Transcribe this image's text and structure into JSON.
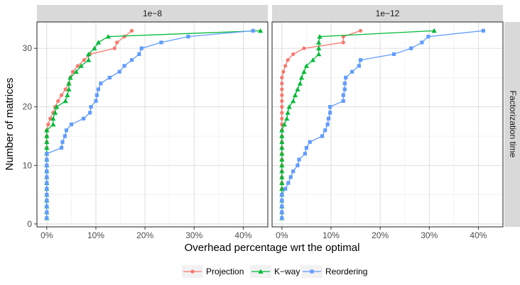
{
  "figure": {
    "xlabel": "Overhead percentage wrt the optimal",
    "ylabel": "Number of matrices",
    "strip_right": "Factorization time",
    "grid": true,
    "legend_position": "bottom",
    "colors": {
      "panel_bg": "#ffffff",
      "grid": "#d9d9d9",
      "strip_bg": "#d9d9d9",
      "border": "#333333"
    }
  },
  "chart_data": [
    {
      "type": "line",
      "facet": "1e−8",
      "xlim": [
        -2,
        45
      ],
      "ylim": [
        -0.5,
        34.5
      ],
      "x_ticks": [
        0,
        10,
        20,
        30,
        40
      ],
      "x_tick_labels": [
        "0%",
        "10%",
        "20%",
        "30%",
        "40%"
      ],
      "y_ticks": [
        0,
        10,
        20,
        30
      ],
      "y_tick_labels": [
        "0",
        "10",
        "20",
        "30"
      ],
      "series": [
        {
          "name": "Projection",
          "color": "#F8766D",
          "marker": "circle",
          "points": [
            [
              0,
              1
            ],
            [
              0,
              2
            ],
            [
              0,
              3
            ],
            [
              0,
              4
            ],
            [
              0,
              5
            ],
            [
              0,
              6
            ],
            [
              0,
              7
            ],
            [
              0,
              8
            ],
            [
              0,
              9
            ],
            [
              0,
              10
            ],
            [
              0,
              11
            ],
            [
              0,
              12
            ],
            [
              0,
              13
            ],
            [
              0,
              14
            ],
            [
              0,
              15
            ],
            [
              0,
              16
            ],
            [
              0.3,
              17
            ],
            [
              0.7,
              18
            ],
            [
              1.3,
              19
            ],
            [
              1.7,
              20
            ],
            [
              2.3,
              21
            ],
            [
              3,
              22
            ],
            [
              3.8,
              23
            ],
            [
              4.5,
              24
            ],
            [
              4.8,
              25
            ],
            [
              5.3,
              26
            ],
            [
              6.3,
              27
            ],
            [
              7.6,
              28
            ],
            [
              8.8,
              29
            ],
            [
              13.8,
              30
            ],
            [
              14.3,
              31
            ],
            [
              15.8,
              32
            ],
            [
              17.3,
              33
            ]
          ]
        },
        {
          "name": "K−way",
          "color": "#00BA38",
          "marker": "triangle",
          "points": [
            [
              0,
              1
            ],
            [
              0,
              2
            ],
            [
              0,
              3
            ],
            [
              0,
              4
            ],
            [
              0,
              5
            ],
            [
              0,
              6
            ],
            [
              0,
              7
            ],
            [
              0,
              8
            ],
            [
              0,
              9
            ],
            [
              0,
              10
            ],
            [
              0,
              11
            ],
            [
              0,
              12
            ],
            [
              0,
              13
            ],
            [
              0,
              14
            ],
            [
              0,
              15
            ],
            [
              0,
              16
            ],
            [
              1.3,
              17
            ],
            [
              1.3,
              18
            ],
            [
              1.7,
              19
            ],
            [
              2,
              20
            ],
            [
              3.8,
              21
            ],
            [
              4.2,
              22
            ],
            [
              4.5,
              23
            ],
            [
              4.5,
              24
            ],
            [
              4.8,
              25
            ],
            [
              6,
              26
            ],
            [
              7,
              27
            ],
            [
              8.5,
              28
            ],
            [
              8.5,
              29
            ],
            [
              9.7,
              30
            ],
            [
              10.5,
              31
            ],
            [
              12.5,
              32
            ],
            [
              43.5,
              33
            ]
          ]
        },
        {
          "name": "Reordering",
          "color": "#619CFF",
          "marker": "square",
          "points": [
            [
              0,
              1
            ],
            [
              0,
              2
            ],
            [
              0,
              3
            ],
            [
              0,
              4
            ],
            [
              0,
              5
            ],
            [
              0,
              6
            ],
            [
              0,
              7
            ],
            [
              0,
              8
            ],
            [
              0,
              9
            ],
            [
              0,
              10
            ],
            [
              0,
              11
            ],
            [
              0,
              12
            ],
            [
              3,
              13
            ],
            [
              3.2,
              14
            ],
            [
              3.7,
              15
            ],
            [
              4,
              16
            ],
            [
              5,
              17
            ],
            [
              7.5,
              18
            ],
            [
              8.8,
              19
            ],
            [
              9,
              20
            ],
            [
              10,
              21
            ],
            [
              10.2,
              22
            ],
            [
              10.5,
              23
            ],
            [
              11,
              24
            ],
            [
              12.8,
              25
            ],
            [
              14.8,
              26
            ],
            [
              15.8,
              27
            ],
            [
              17.3,
              28
            ],
            [
              18.8,
              29
            ],
            [
              19.3,
              30
            ],
            [
              23.3,
              31
            ],
            [
              28.8,
              32
            ],
            [
              42,
              33
            ]
          ]
        }
      ]
    },
    {
      "type": "line",
      "facet": "1e−12",
      "xlim": [
        -2,
        45
      ],
      "ylim": [
        -0.5,
        34.5
      ],
      "x_ticks": [
        0,
        10,
        20,
        30,
        40
      ],
      "x_tick_labels": [
        "0%",
        "10%",
        "20%",
        "30%",
        "40%"
      ],
      "y_ticks": [
        0,
        10,
        20,
        30
      ],
      "y_tick_labels": [
        "0",
        "10",
        "20",
        "30"
      ],
      "series": [
        {
          "name": "Projection",
          "color": "#F8766D",
          "marker": "circle",
          "points": [
            [
              0,
              1
            ],
            [
              0,
              2
            ],
            [
              0,
              3
            ],
            [
              0,
              4
            ],
            [
              0,
              5
            ],
            [
              0,
              6
            ],
            [
              0,
              7
            ],
            [
              0,
              8
            ],
            [
              0,
              9
            ],
            [
              0,
              10
            ],
            [
              0,
              11
            ],
            [
              0,
              12
            ],
            [
              0,
              13
            ],
            [
              0,
              14
            ],
            [
              0,
              15
            ],
            [
              0,
              16
            ],
            [
              0,
              17
            ],
            [
              0,
              18
            ],
            [
              0,
              19
            ],
            [
              0,
              20
            ],
            [
              0,
              21
            ],
            [
              0,
              22
            ],
            [
              0,
              23
            ],
            [
              0,
              24
            ],
            [
              0,
              25
            ],
            [
              0.3,
              26
            ],
            [
              0.7,
              27
            ],
            [
              1.2,
              28
            ],
            [
              2.3,
              29
            ],
            [
              4.5,
              30
            ],
            [
              12.5,
              31
            ],
            [
              12.5,
              32
            ],
            [
              16,
              33
            ]
          ]
        },
        {
          "name": "K−way",
          "color": "#00BA38",
          "marker": "triangle",
          "points": [
            [
              0,
              1
            ],
            [
              0,
              2
            ],
            [
              0,
              3
            ],
            [
              0,
              4
            ],
            [
              0,
              5
            ],
            [
              0,
              6
            ],
            [
              0,
              7
            ],
            [
              0,
              8
            ],
            [
              0,
              9
            ],
            [
              0,
              10
            ],
            [
              0,
              11
            ],
            [
              0,
              12
            ],
            [
              0,
              13
            ],
            [
              0,
              14
            ],
            [
              0,
              15
            ],
            [
              0,
              16
            ],
            [
              0.5,
              17
            ],
            [
              1,
              18
            ],
            [
              1.2,
              19
            ],
            [
              1.5,
              20
            ],
            [
              2.3,
              21
            ],
            [
              2.7,
              22
            ],
            [
              3.2,
              23
            ],
            [
              3.7,
              24
            ],
            [
              4,
              25
            ],
            [
              4.5,
              26
            ],
            [
              5,
              27
            ],
            [
              6.3,
              28
            ],
            [
              7.5,
              29
            ],
            [
              7.5,
              30
            ],
            [
              7.5,
              31
            ],
            [
              7.7,
              32
            ],
            [
              31,
              33
            ]
          ]
        },
        {
          "name": "Reordering",
          "color": "#619CFF",
          "marker": "square",
          "points": [
            [
              0,
              1
            ],
            [
              0,
              2
            ],
            [
              0,
              3
            ],
            [
              0,
              4
            ],
            [
              0,
              5
            ],
            [
              0.7,
              6
            ],
            [
              1.3,
              7
            ],
            [
              1.8,
              8
            ],
            [
              2.3,
              9
            ],
            [
              3.2,
              10
            ],
            [
              3.5,
              11
            ],
            [
              4.7,
              12
            ],
            [
              5,
              13
            ],
            [
              5.7,
              14
            ],
            [
              8.2,
              15
            ],
            [
              8.8,
              16
            ],
            [
              9.3,
              17
            ],
            [
              9.5,
              18
            ],
            [
              9.8,
              19
            ],
            [
              9.8,
              20
            ],
            [
              12.5,
              21
            ],
            [
              12.5,
              22
            ],
            [
              12.8,
              23
            ],
            [
              12.8,
              24
            ],
            [
              13,
              25
            ],
            [
              14.3,
              26
            ],
            [
              15.7,
              27
            ],
            [
              16,
              28
            ],
            [
              22.8,
              29
            ],
            [
              26.3,
              30
            ],
            [
              28.5,
              31
            ],
            [
              29.8,
              32
            ],
            [
              41,
              33
            ]
          ]
        }
      ]
    }
  ]
}
